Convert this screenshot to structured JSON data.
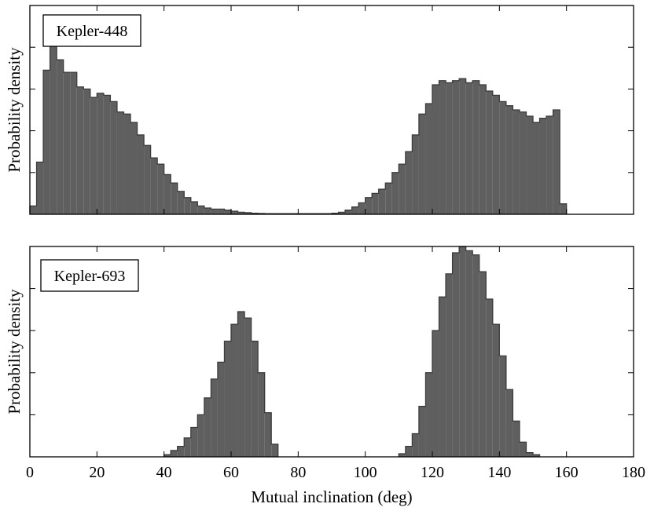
{
  "chart_data": [
    {
      "type": "bar",
      "label": "Kepler-448",
      "ylabel": "Probability density",
      "xlabel": "",
      "xlim": [
        0,
        180
      ],
      "ylim": [
        0,
        1.0
      ],
      "xticks": [
        0,
        20,
        40,
        60,
        80,
        100,
        120,
        140,
        160,
        180
      ],
      "show_xtick_labels": false,
      "yticks": [
        0.2,
        0.4,
        0.6,
        0.8,
        1.0
      ],
      "show_ytick_labels": false,
      "bin_width": 2,
      "bin_start": 0,
      "values": [
        0.04,
        0.25,
        0.69,
        0.82,
        0.74,
        0.68,
        0.68,
        0.61,
        0.6,
        0.56,
        0.58,
        0.57,
        0.54,
        0.49,
        0.48,
        0.44,
        0.38,
        0.33,
        0.27,
        0.24,
        0.19,
        0.15,
        0.11,
        0.08,
        0.06,
        0.04,
        0.03,
        0.025,
        0.025,
        0.02,
        0.015,
        0.01,
        0.008,
        0.005,
        0.004,
        0.003,
        0.003,
        0.003,
        0.003,
        0.003,
        0.003,
        0.003,
        0.003,
        0.003,
        0.003,
        0.005,
        0.01,
        0.02,
        0.035,
        0.055,
        0.08,
        0.1,
        0.12,
        0.15,
        0.2,
        0.24,
        0.3,
        0.38,
        0.48,
        0.53,
        0.62,
        0.64,
        0.63,
        0.64,
        0.65,
        0.63,
        0.64,
        0.62,
        0.59,
        0.57,
        0.54,
        0.52,
        0.5,
        0.49,
        0.47,
        0.44,
        0.46,
        0.47,
        0.5,
        0.05
      ]
    },
    {
      "type": "bar",
      "label": "Kepler-693",
      "ylabel": "Probability density",
      "xlabel": "Mutual inclination (deg)",
      "xlim": [
        0,
        180
      ],
      "ylim": [
        0,
        1.0
      ],
      "xticks": [
        0,
        20,
        40,
        60,
        80,
        100,
        120,
        140,
        160,
        180
      ],
      "xtick_labels": [
        "0",
        "20",
        "40",
        "60",
        "80",
        "100",
        "120",
        "140",
        "160",
        "180"
      ],
      "yticks": [
        0.2,
        0.4,
        0.6,
        0.8,
        1.0
      ],
      "show_ytick_labels": false,
      "bin_width": 2,
      "bin_start": 0,
      "values": [
        0,
        0,
        0,
        0,
        0,
        0,
        0,
        0,
        0,
        0,
        0,
        0,
        0,
        0,
        0,
        0,
        0,
        0,
        0,
        0,
        0.01,
        0.03,
        0.05,
        0.09,
        0.14,
        0.2,
        0.28,
        0.37,
        0.45,
        0.55,
        0.63,
        0.69,
        0.66,
        0.55,
        0.4,
        0.21,
        0.06,
        0,
        0,
        0,
        0,
        0,
        0,
        0,
        0,
        0,
        0,
        0,
        0,
        0,
        0,
        0,
        0,
        0,
        0,
        0.015,
        0.05,
        0.11,
        0.24,
        0.4,
        0.6,
        0.76,
        0.87,
        0.97,
        1.02,
        0.98,
        0.96,
        0.88,
        0.75,
        0.63,
        0.48,
        0.32,
        0.17,
        0.07,
        0.02,
        0.01,
        0,
        0,
        0,
        0
      ]
    }
  ]
}
